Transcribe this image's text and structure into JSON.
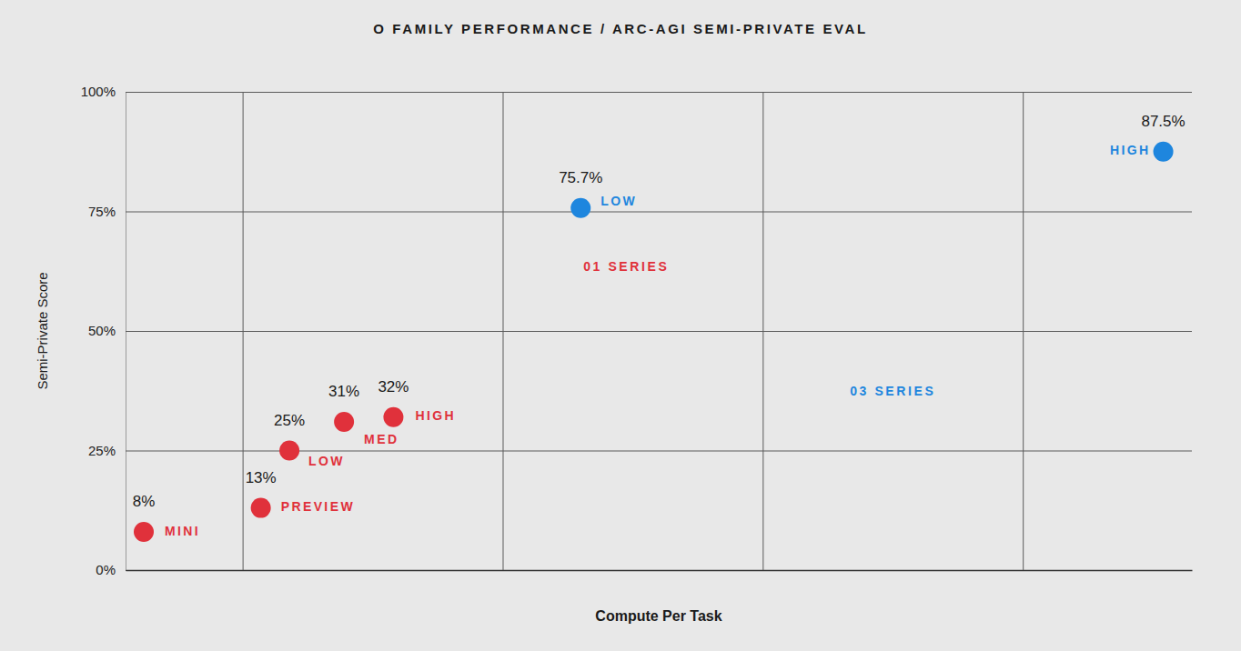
{
  "chart_data": {
    "type": "scatter",
    "title": "O FAMILY PERFORMANCE / ARC-AGI SEMI-PRIVATE EVAL",
    "x_label": "Compute Per Task",
    "y_label": "Semi-Private Score",
    "xlim": [
      0.55,
      4.65
    ],
    "xticks": [
      1,
      2,
      3,
      4
    ],
    "ylim": [
      0,
      100
    ],
    "yticks": [
      {
        "value": 0,
        "label": "0%"
      },
      {
        "value": 25,
        "label": "25%"
      },
      {
        "value": 50,
        "label": "50%"
      },
      {
        "value": 75,
        "label": "75%"
      },
      {
        "value": 100,
        "label": "100%"
      }
    ],
    "grid": true,
    "tick_labels": "y",
    "data_labels": true,
    "marker": "circle",
    "series": [
      {
        "name": "01 SERIES",
        "color": "#e0313b",
        "x": [
          0.62,
          1.07,
          1.18,
          1.39,
          1.58
        ],
        "values": [
          8,
          13,
          25,
          31,
          32
        ],
        "value_labels": [
          "8%",
          "13%",
          "25%",
          "31%",
          "32%"
        ],
        "labels": [
          "MINI",
          "PREVIEW",
          "LOW",
          "MED",
          "HIGH"
        ]
      },
      {
        "name": "03 SERIES",
        "color": "#1e86de",
        "x": [
          2.3,
          4.54
        ],
        "values": [
          75.7,
          87.5
        ],
        "value_labels": [
          "75.7%",
          "87.5%"
        ],
        "labels": [
          "LOW",
          "HIGH"
        ]
      }
    ]
  }
}
